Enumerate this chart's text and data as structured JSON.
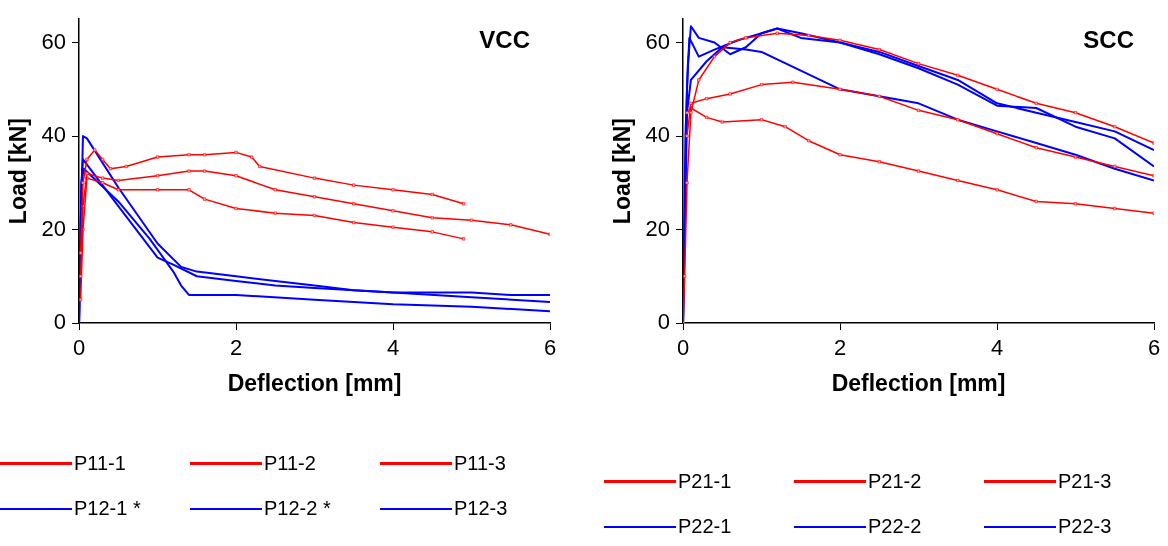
{
  "chart_data": [
    {
      "type": "line",
      "title": "VCC",
      "xlabel": "Deflection [mm]",
      "ylabel": "Load [kN]",
      "xlim": [
        0,
        6
      ],
      "xticks": [
        0,
        2,
        4,
        6
      ],
      "ylim": [
        0,
        65
      ],
      "yticks": [
        0,
        20,
        40,
        60
      ],
      "grid": false,
      "legend": "bottom",
      "series": [
        {
          "name": "P11-1",
          "color": "#ff0000",
          "marker": "square",
          "x": [
            0.02,
            0.05,
            0.1,
            0.2,
            0.3,
            0.4,
            0.6,
            1,
            1.4,
            1.6,
            2,
            2.2,
            2.3,
            3,
            3.5,
            4,
            4.5,
            4.9
          ],
          "values": [
            15,
            30,
            35,
            37,
            35,
            33,
            33.5,
            35.5,
            36,
            36,
            36.5,
            35.5,
            33.5,
            31,
            29.5,
            28.5,
            27.5,
            25.5
          ]
        },
        {
          "name": "P11-2",
          "color": "#ff0000",
          "marker": "square",
          "x": [
            0.02,
            0.05,
            0.1,
            0.3,
            0.5,
            1,
            1.4,
            1.6,
            2,
            2.5,
            3,
            3.5,
            4,
            4.5,
            5,
            5.5,
            6
          ],
          "values": [
            10,
            25,
            32,
            31,
            30.5,
            31.5,
            32.5,
            32.5,
            31.5,
            28.5,
            27,
            25.5,
            24,
            22.5,
            22,
            21,
            19
          ]
        },
        {
          "name": "P11-3",
          "color": "#ff0000",
          "marker": "square",
          "x": [
            0.02,
            0.05,
            0.1,
            0.3,
            0.5,
            1,
            1.4,
            1.6,
            2,
            2.5,
            3,
            3.5,
            4,
            4.5,
            4.9
          ],
          "values": [
            5,
            20,
            31,
            30,
            28.5,
            28.5,
            28.5,
            26.5,
            24.5,
            23.5,
            23,
            21.5,
            20.5,
            19.5,
            18
          ]
        },
        {
          "name": "P12-1 *",
          "color": "#0000ff",
          "marker": "none",
          "x": [
            0,
            0.02,
            0.05,
            0.1,
            0.5,
            1,
            1.3,
            1.5,
            2,
            2.5,
            3,
            3.5,
            4,
            5,
            5.5,
            6
          ],
          "values": [
            0,
            20,
            40,
            39.5,
            29,
            17,
            12,
            11,
            10,
            9,
            8,
            7,
            6.5,
            6.5,
            6,
            6
          ]
        },
        {
          "name": "P12-2 *",
          "color": "#0000ff",
          "marker": "none",
          "x": [
            0,
            0.03,
            0.05,
            0.5,
            1,
            1.2,
            1.5,
            2,
            2.5,
            3,
            4,
            5,
            6
          ],
          "values": [
            0,
            30,
            35,
            25,
            14,
            12.5,
            10,
            9,
            8,
            7.5,
            6.5,
            5.5,
            4.5
          ]
        },
        {
          "name": "P12-3",
          "color": "#0000ff",
          "marker": "none",
          "x": [
            0,
            0.03,
            0.06,
            0.5,
            0.9,
            1.2,
            1.3,
            1.4,
            1.5,
            2,
            3,
            4,
            5,
            6
          ],
          "values": [
            0,
            30,
            33,
            26,
            18,
            11,
            8,
            6,
            6,
            6,
            5,
            4,
            3.5,
            2.5
          ]
        }
      ]
    },
    {
      "type": "line",
      "title": "SCC",
      "xlabel": "Deflection [mm]",
      "ylabel": "Load [kN]",
      "xlim": [
        0,
        6
      ],
      "xticks": [
        0,
        2,
        4,
        6
      ],
      "ylim": [
        0,
        65
      ],
      "yticks": [
        0,
        20,
        40,
        60
      ],
      "grid": false,
      "legend": "bottom",
      "series": [
        {
          "name": "P21-1",
          "color": "#ff0000",
          "marker": "square",
          "x": [
            0,
            0.02,
            0.05,
            0.1,
            0.2,
            0.4,
            0.6,
            0.8,
            1.2,
            1.6,
            2,
            2.5,
            3,
            3.5,
            4,
            4.5,
            5,
            5.5,
            6
          ],
          "values": [
            0,
            10,
            30,
            45,
            52,
            57,
            60,
            61,
            62,
            61.5,
            60.5,
            58.5,
            55.5,
            53,
            50,
            47,
            45,
            42,
            38.5
          ]
        },
        {
          "name": "P21-2",
          "color": "#ff0000",
          "marker": "square",
          "x": [
            0.05,
            0.1,
            0.3,
            0.6,
            1,
            1.4,
            2,
            2.5,
            3,
            3.5,
            4,
            4.5,
            5,
            5.5,
            6
          ],
          "values": [
            40,
            47,
            48,
            49,
            51,
            51.5,
            50,
            48.5,
            45.5,
            43.5,
            40.5,
            37.5,
            35.5,
            33.5,
            31.5
          ]
        },
        {
          "name": "P21-3",
          "color": "#ff0000",
          "marker": "square",
          "x": [
            0.05,
            0.1,
            0.3,
            0.5,
            1,
            1.3,
            1.6,
            2,
            2.5,
            3,
            3.5,
            4,
            4.5,
            5,
            5.5,
            6
          ],
          "values": [
            45,
            46,
            44,
            43,
            43.5,
            42,
            39,
            36,
            34.5,
            32.5,
            30.5,
            28.5,
            26,
            25.5,
            24.5,
            23.5
          ]
        },
        {
          "name": "P22-1",
          "color": "#0000ff",
          "marker": "none",
          "x": [
            0,
            0.03,
            0.06,
            0.1,
            0.2,
            0.4,
            0.6,
            0.8,
            1,
            1.2,
            1.5,
            2,
            2.5,
            3,
            3.5,
            4,
            4.5,
            5,
            5.5,
            6
          ],
          "values": [
            0,
            40,
            55,
            63.5,
            61,
            60,
            57.5,
            59,
            62,
            63,
            62,
            60,
            58,
            55,
            52,
            47,
            45,
            43,
            41,
            37
          ]
        },
        {
          "name": "P22-2",
          "color": "#0000ff",
          "marker": "none",
          "x": [
            0,
            0.05,
            0.08,
            0.2,
            0.4,
            0.7,
            1.2,
            1.5,
            2,
            2.5,
            3,
            3.5,
            4,
            4.5,
            5,
            5.5,
            6
          ],
          "values": [
            0,
            50,
            61,
            57,
            58.5,
            60.5,
            63,
            61,
            60,
            57.5,
            54.5,
            51,
            46.5,
            46,
            42,
            39.5,
            33.5
          ]
        },
        {
          "name": "P22-3",
          "color": "#0000ff",
          "marker": "none",
          "x": [
            0,
            0.05,
            0.1,
            0.3,
            0.5,
            0.8,
            1,
            1.5,
            2,
            2.5,
            3,
            3.5,
            4,
            4.5,
            5,
            5.5,
            6
          ],
          "values": [
            0,
            45,
            52,
            56,
            59,
            58.5,
            58,
            54,
            50,
            48.5,
            47,
            43.5,
            41,
            38.5,
            36,
            33,
            30.5
          ]
        }
      ]
    }
  ]
}
